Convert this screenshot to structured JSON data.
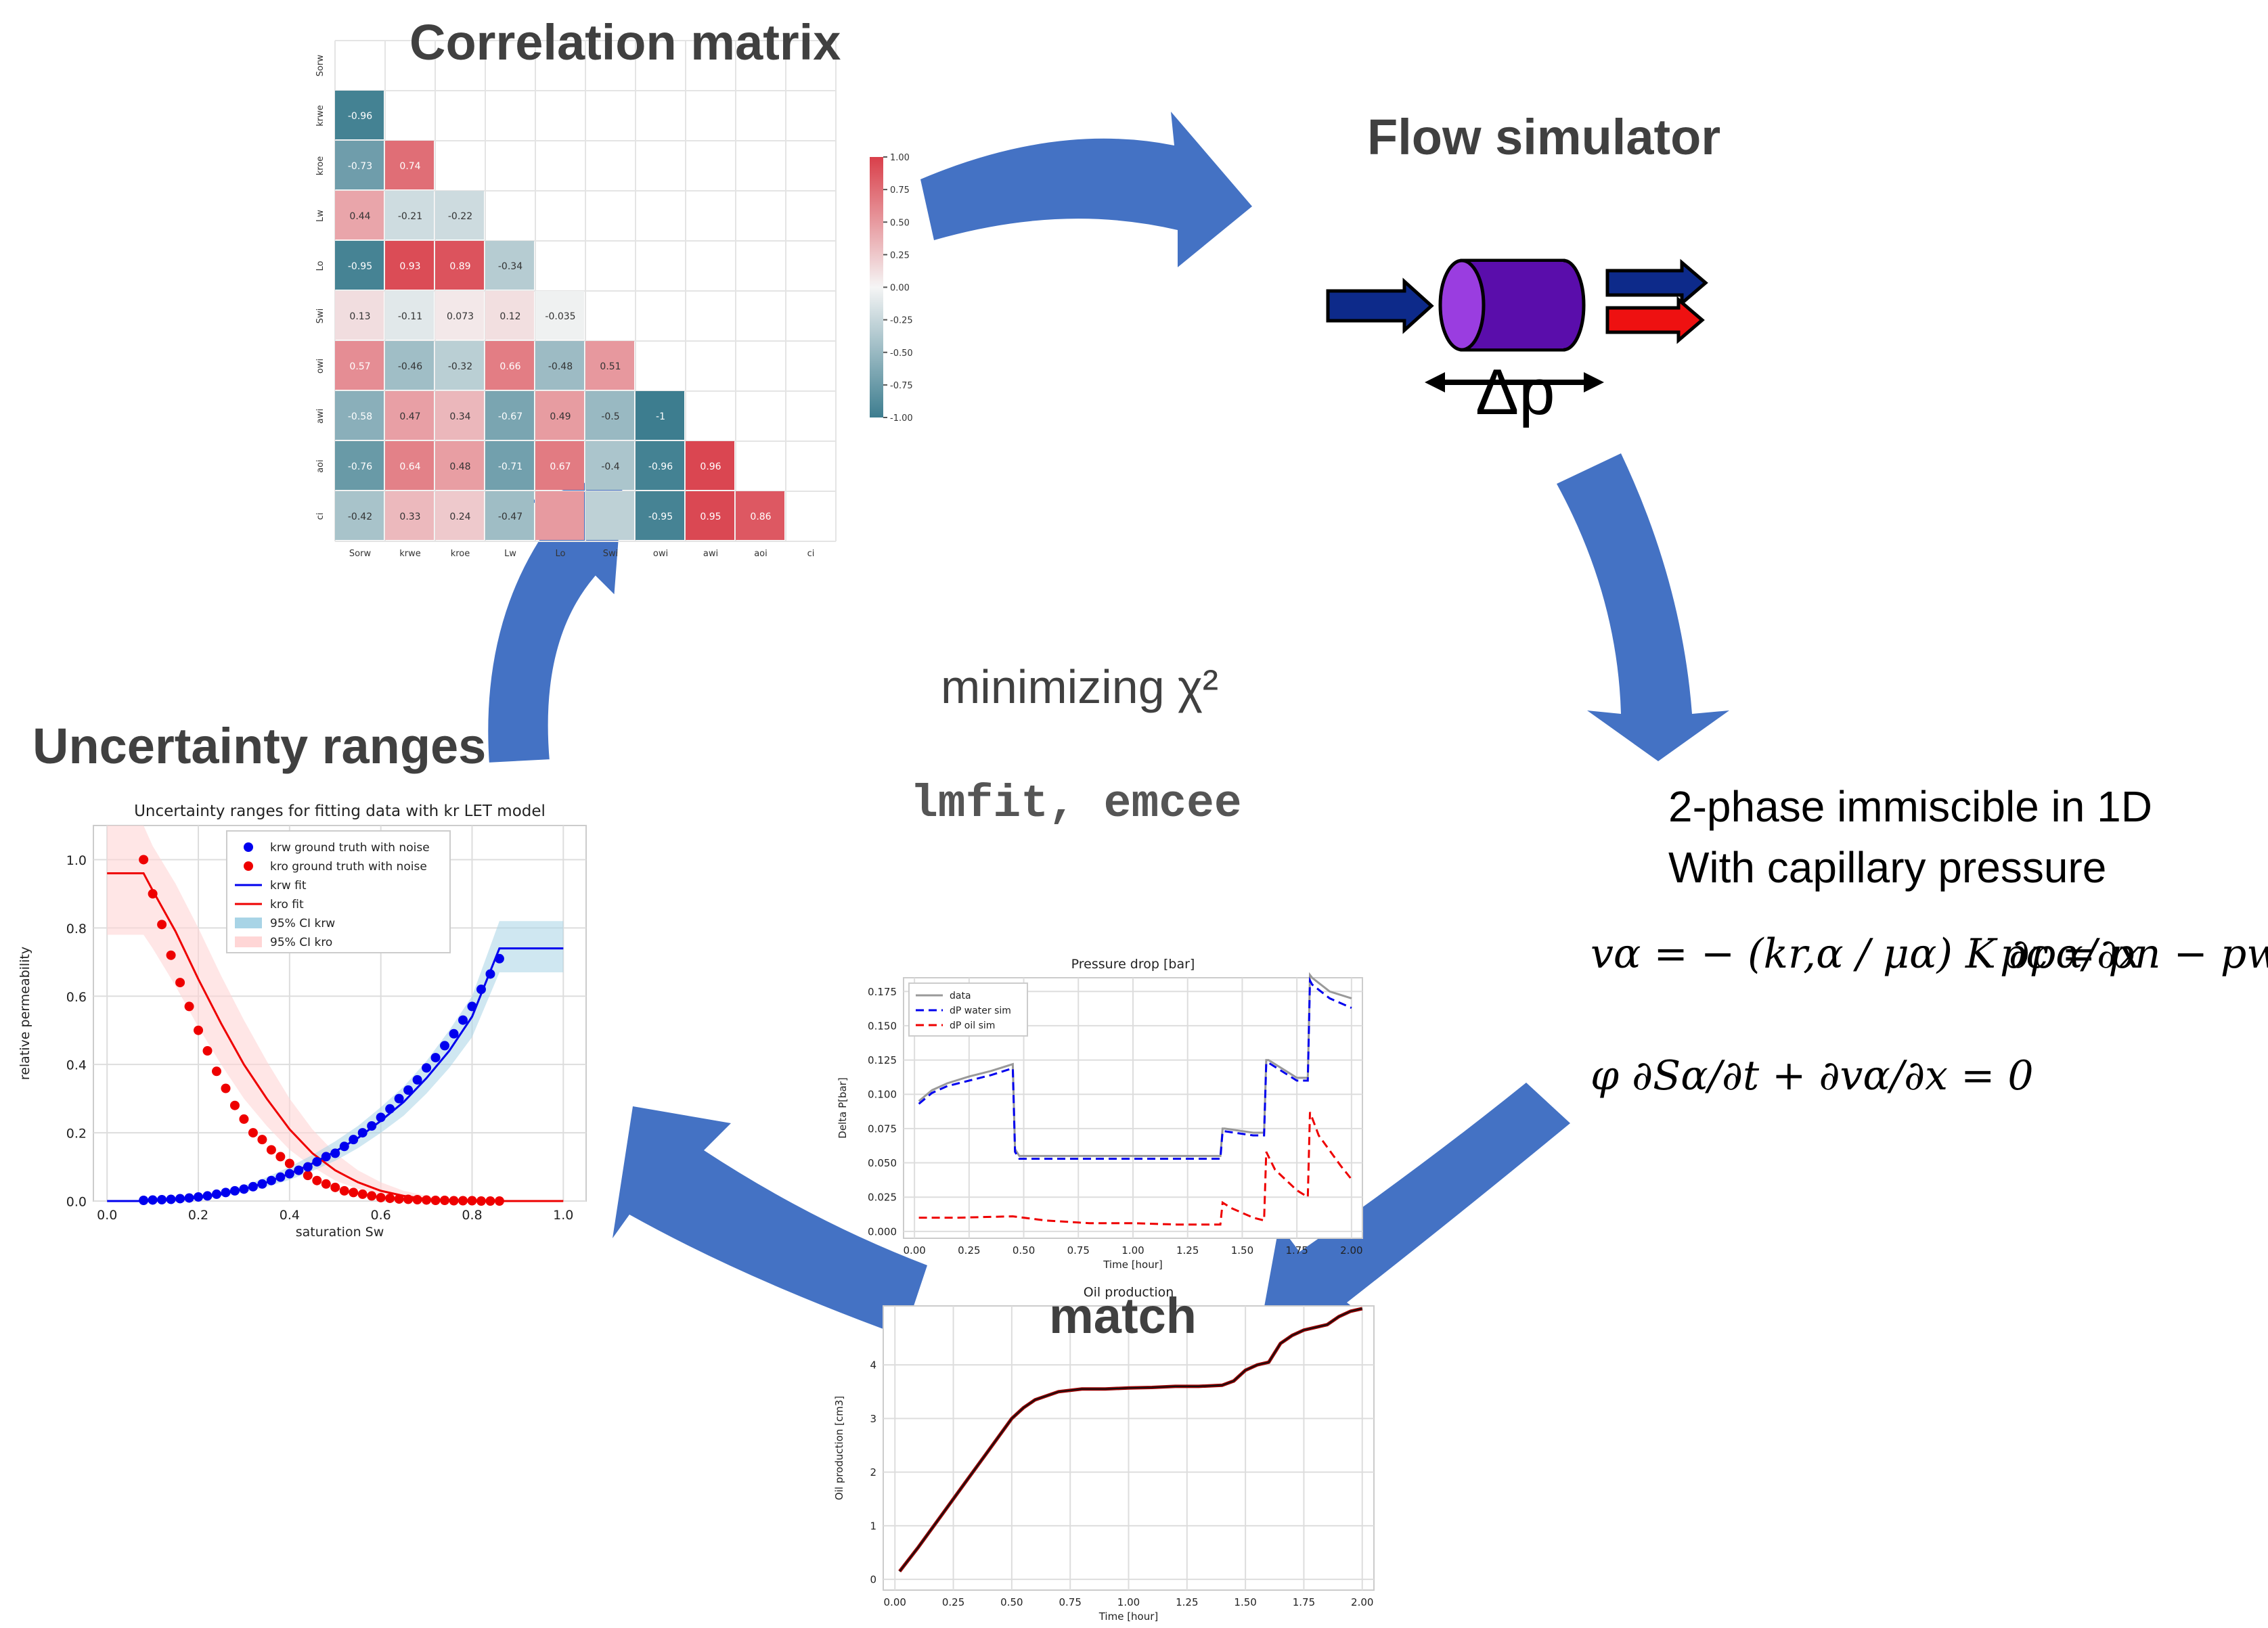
{
  "headings": {
    "correlation": "Correlation matrix",
    "flow": "Flow simulator",
    "uncertainty": "Uncertainty ranges",
    "minimizing": "minimizing χ²",
    "libs": "lmfit, emcee",
    "match": "match",
    "phase_line1": "2-phase immiscible in 1D",
    "phase_line2": "With capillary pressure",
    "delta_p": "Δp"
  },
  "equations": {
    "darcy": "vα = − (kr,α / μα) K ∂pα/∂x",
    "capillary": "pc = pn − pw",
    "mass": "φ ∂Sα/∂t + ∂vα/∂x = 0"
  },
  "colors": {
    "arrow": "#4472c4",
    "corr_pos": "#d93f4a",
    "corr_neg": "#3d7d8f",
    "water": "#0000ee",
    "oil": "#ee0000"
  },
  "chart_data": [
    {
      "type": "heatmap",
      "id": "correlation",
      "labels": [
        "Sorw",
        "krwe",
        "kroe",
        "Lw",
        "Lo",
        "Swi",
        "owi",
        "awi",
        "aoi",
        "ci"
      ],
      "values": [
        [],
        [
          -0.96
        ],
        [
          -0.73,
          0.74
        ],
        [
          0.44,
          -0.21,
          -0.22
        ],
        [
          -0.95,
          0.93,
          0.89,
          -0.34
        ],
        [
          0.13,
          -0.11,
          0.073,
          0.12,
          -0.035
        ],
        [
          0.57,
          -0.46,
          -0.32,
          0.66,
          -0.48,
          0.51
        ],
        [
          -0.58,
          0.47,
          0.34,
          -0.67,
          0.49,
          -0.5,
          -1
        ],
        [
          -0.76,
          0.64,
          0.48,
          -0.71,
          0.67,
          -0.4,
          -0.96,
          0.96
        ],
        [
          -0.42,
          0.33,
          0.24,
          -0.47,
          0.5,
          -0.3,
          -0.95,
          0.95,
          0.86
        ]
      ],
      "value_labels": [
        [],
        [
          "-0.96"
        ],
        [
          "-0.73",
          "0.74"
        ],
        [
          "0.44",
          "-0.21",
          "-0.22"
        ],
        [
          "-0.95",
          "0.93",
          "0.89",
          "-0.34"
        ],
        [
          "0.13",
          "-0.11",
          "0.073",
          "0.12",
          "-0.035"
        ],
        [
          "0.57",
          "-0.46",
          "-0.32",
          "0.66",
          "-0.48",
          "0.51"
        ],
        [
          "-0.58",
          "0.47",
          "0.34",
          "-0.67",
          "0.49",
          "-0.5",
          "-1"
        ],
        [
          "-0.76",
          "0.64",
          "0.48",
          "-0.71",
          "0.67",
          "-0.4",
          "-0.96",
          "0.96"
        ],
        [
          "-0.42",
          "0.33",
          "0.24",
          "-0.47",
          "",
          "",
          "-0.95",
          "0.95",
          "0.86"
        ]
      ],
      "colorbar_ticks": [
        "1.00",
        "0.75",
        "0.50",
        "0.25",
        "0.00",
        "-0.25",
        "-0.50",
        "-0.75",
        "-1.00"
      ],
      "colorbar_range": [
        -1,
        1
      ]
    },
    {
      "type": "line",
      "id": "relperm",
      "title": "Uncertainty ranges for fitting data with kr LET model",
      "xlabel": "saturation Sw",
      "ylabel": "relative permeability",
      "xlim": [
        -0.03,
        1.05
      ],
      "ylim": [
        0,
        1.1
      ],
      "xticks": [
        "0.0",
        "0.2",
        "0.4",
        "0.6",
        "0.8",
        "1.0"
      ],
      "yticks": [
        "0.0",
        "0.2",
        "0.4",
        "0.6",
        "0.8",
        "1.0"
      ],
      "legend": [
        "krw ground truth with noise",
        "kro ground truth with noise",
        "krw fit",
        "kro fit",
        "95% CI krw",
        "95% CI kro"
      ],
      "grid": true,
      "scatter_x": [
        0.08,
        0.1,
        0.12,
        0.14,
        0.16,
        0.18,
        0.2,
        0.22,
        0.24,
        0.26,
        0.28,
        0.3,
        0.32,
        0.34,
        0.36,
        0.38,
        0.4,
        0.42,
        0.44,
        0.46,
        0.48,
        0.5,
        0.52,
        0.54,
        0.56,
        0.58,
        0.6,
        0.62,
        0.64,
        0.66,
        0.68,
        0.7,
        0.72,
        0.74,
        0.76,
        0.78,
        0.8,
        0.82,
        0.84,
        0.86
      ],
      "krw_points": [
        0.002,
        0.003,
        0.004,
        0.005,
        0.007,
        0.009,
        0.012,
        0.015,
        0.02,
        0.025,
        0.03,
        0.035,
        0.042,
        0.05,
        0.06,
        0.07,
        0.08,
        0.09,
        0.1,
        0.115,
        0.13,
        0.14,
        0.16,
        0.18,
        0.2,
        0.22,
        0.245,
        0.27,
        0.3,
        0.325,
        0.355,
        0.39,
        0.42,
        0.455,
        0.49,
        0.53,
        0.57,
        0.62,
        0.665,
        0.71
      ],
      "kro_points": [
        1.0,
        0.9,
        0.81,
        0.72,
        0.64,
        0.57,
        0.5,
        0.44,
        0.38,
        0.33,
        0.28,
        0.24,
        0.2,
        0.18,
        0.15,
        0.13,
        0.11,
        0.09,
        0.075,
        0.06,
        0.05,
        0.04,
        0.03,
        0.025,
        0.02,
        0.015,
        0.01,
        0.008,
        0.006,
        0.005,
        0.004,
        0.003,
        0.002,
        0.002,
        0.001,
        0.001,
        0.001,
        0.0,
        0.0,
        0.0
      ],
      "fit_x": [
        0,
        0.08,
        0.1,
        0.15,
        0.2,
        0.25,
        0.3,
        0.35,
        0.4,
        0.45,
        0.5,
        0.55,
        0.6,
        0.65,
        0.7,
        0.75,
        0.8,
        0.86,
        1.0
      ],
      "krw_fit": [
        0,
        0,
        0.001,
        0.004,
        0.01,
        0.02,
        0.035,
        0.055,
        0.08,
        0.11,
        0.145,
        0.185,
        0.235,
        0.29,
        0.36,
        0.44,
        0.54,
        0.74,
        0.74
      ],
      "kro_fit": [
        0.96,
        0.96,
        0.91,
        0.79,
        0.65,
        0.52,
        0.4,
        0.3,
        0.21,
        0.14,
        0.09,
        0.055,
        0.03,
        0.015,
        0.006,
        0.002,
        0,
        0,
        0
      ],
      "krw_ci_upper": [
        0,
        0,
        0.002,
        0.006,
        0.014,
        0.027,
        0.045,
        0.07,
        0.1,
        0.135,
        0.175,
        0.22,
        0.275,
        0.335,
        0.41,
        0.5,
        0.6,
        0.82,
        0.82
      ],
      "krw_ci_lower": [
        0,
        0,
        0,
        0.002,
        0.006,
        0.014,
        0.026,
        0.042,
        0.062,
        0.088,
        0.118,
        0.155,
        0.2,
        0.25,
        0.315,
        0.39,
        0.48,
        0.67,
        0.67
      ],
      "kro_ci_upper": [
        1.1,
        1.1,
        1.04,
        0.93,
        0.8,
        0.66,
        0.53,
        0.41,
        0.3,
        0.21,
        0.14,
        0.09,
        0.055,
        0.03,
        0.015,
        0.006,
        0.002,
        0,
        0
      ],
      "kro_ci_lower": [
        0.78,
        0.78,
        0.74,
        0.63,
        0.51,
        0.4,
        0.3,
        0.22,
        0.15,
        0.1,
        0.06,
        0.035,
        0.018,
        0.008,
        0.003,
        0.001,
        0,
        0,
        0
      ]
    },
    {
      "type": "line",
      "id": "pressure",
      "title": "Pressure drop [bar]",
      "xlabel": "Time [hour]",
      "ylabel": "Delta P[bar]",
      "xlim": [
        -0.05,
        2.05
      ],
      "ylim": [
        -0.005,
        0.185
      ],
      "xticks": [
        "0.00",
        "0.25",
        "0.50",
        "0.75",
        "1.00",
        "1.25",
        "1.50",
        "1.75",
        "2.00"
      ],
      "yticks": [
        "0.000",
        "0.025",
        "0.050",
        "0.075",
        "0.100",
        "0.125",
        "0.150",
        "0.175"
      ],
      "legend": [
        "data",
        "dP water sim",
        "dP oil sim"
      ],
      "grid": true,
      "series": [
        {
          "name": "data",
          "x": [
            0.02,
            0.08,
            0.15,
            0.25,
            0.35,
            0.45,
            0.46,
            0.48,
            0.6,
            0.8,
            1.0,
            1.2,
            1.4,
            1.41,
            1.42,
            1.55,
            1.6,
            1.61,
            1.62,
            1.75,
            1.8,
            1.81,
            1.82,
            1.9,
            2.0
          ],
          "y": [
            0.095,
            0.103,
            0.108,
            0.113,
            0.117,
            0.122,
            0.06,
            0.055,
            0.055,
            0.055,
            0.055,
            0.055,
            0.055,
            0.075,
            0.075,
            0.072,
            0.072,
            0.125,
            0.125,
            0.112,
            0.112,
            0.187,
            0.185,
            0.175,
            0.17
          ]
        },
        {
          "name": "dP water sim",
          "x": [
            0.02,
            0.08,
            0.15,
            0.25,
            0.35,
            0.45,
            0.46,
            0.48,
            0.6,
            0.8,
            1.0,
            1.2,
            1.4,
            1.41,
            1.42,
            1.55,
            1.6,
            1.61,
            1.62,
            1.75,
            1.8,
            1.81,
            1.82,
            1.9,
            2.0
          ],
          "y": [
            0.093,
            0.101,
            0.106,
            0.11,
            0.114,
            0.119,
            0.058,
            0.053,
            0.053,
            0.053,
            0.053,
            0.053,
            0.053,
            0.073,
            0.073,
            0.07,
            0.07,
            0.123,
            0.123,
            0.11,
            0.11,
            0.183,
            0.18,
            0.17,
            0.163
          ]
        },
        {
          "name": "dP oil sim",
          "x": [
            0.02,
            0.2,
            0.45,
            0.6,
            0.8,
            1.0,
            1.2,
            1.4,
            1.41,
            1.45,
            1.55,
            1.6,
            1.61,
            1.65,
            1.75,
            1.8,
            1.81,
            1.85,
            1.95,
            2.0
          ],
          "y": [
            0.01,
            0.01,
            0.011,
            0.008,
            0.006,
            0.006,
            0.005,
            0.005,
            0.021,
            0.017,
            0.01,
            0.008,
            0.058,
            0.045,
            0.03,
            0.025,
            0.087,
            0.07,
            0.048,
            0.038
          ]
        }
      ]
    },
    {
      "type": "line",
      "id": "oil",
      "title": "Oil production",
      "xlabel": "Time [hour]",
      "ylabel": "Oil production [cm3]",
      "xlim": [
        -0.05,
        2.05
      ],
      "ylim": [
        -0.2,
        5.1
      ],
      "xticks": [
        "0.00",
        "0.25",
        "0.50",
        "0.75",
        "1.00",
        "1.25",
        "1.50",
        "1.75",
        "2.00"
      ],
      "yticks": [
        "0",
        "1",
        "2",
        "3",
        "4"
      ],
      "grid": true,
      "series": [
        {
          "name": "data",
          "x": [
            0.02,
            0.1,
            0.2,
            0.3,
            0.4,
            0.5,
            0.55,
            0.6,
            0.7,
            0.8,
            0.9,
            1.0,
            1.1,
            1.2,
            1.3,
            1.4,
            1.45,
            1.5,
            1.55,
            1.6,
            1.65,
            1.7,
            1.75,
            1.8,
            1.85,
            1.9,
            1.95,
            2.0
          ],
          "y": [
            0.15,
            0.6,
            1.2,
            1.8,
            2.4,
            3.0,
            3.2,
            3.35,
            3.5,
            3.55,
            3.55,
            3.57,
            3.58,
            3.6,
            3.6,
            3.62,
            3.7,
            3.9,
            4.0,
            4.05,
            4.4,
            4.55,
            4.65,
            4.7,
            4.75,
            4.9,
            5.0,
            5.05
          ]
        }
      ]
    }
  ]
}
